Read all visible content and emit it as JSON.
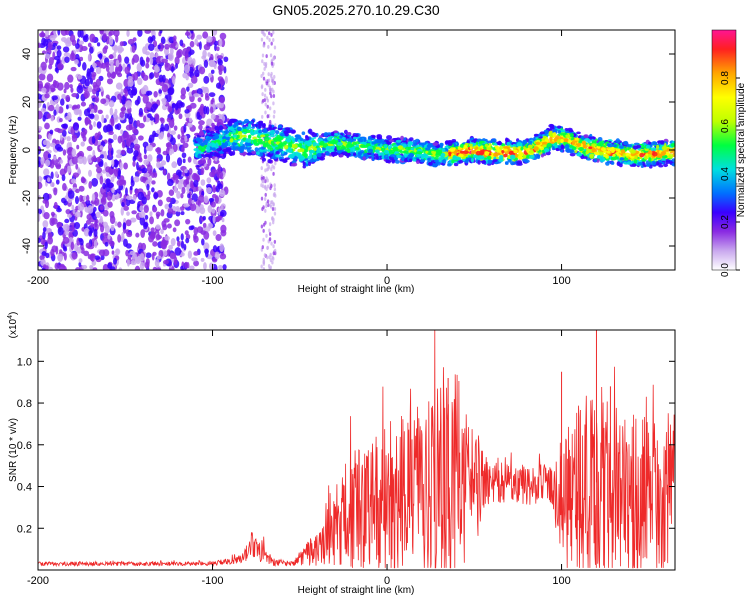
{
  "title": "GN05.2025.270.10.29.C30",
  "chart_data": [
    {
      "type": "heatmap",
      "title": "GN05.2025.270.10.29.C30",
      "xlabel": "Height of straight line (km)",
      "ylabel": "Frequency (Hz)",
      "xlim": [
        -200,
        165
      ],
      "ylim": [
        -50,
        50
      ],
      "xticks": [
        -200,
        -100,
        0,
        100
      ],
      "xtick_labels": [
        "-200",
        "-100",
        "0",
        "100"
      ],
      "yticks": [
        -40,
        -20,
        0,
        20,
        40
      ],
      "ytick_labels": [
        "-40",
        "-20",
        "0",
        "20",
        "40"
      ],
      "ridge": {
        "x": [
          -110,
          -95,
          -85,
          -75,
          -70,
          -60,
          -50,
          -40,
          -30,
          -20,
          -10,
          0,
          10,
          20,
          30,
          40,
          50,
          60,
          70,
          80,
          88,
          95,
          100,
          110,
          120,
          130,
          140,
          150,
          160,
          165
        ],
        "y": [
          0,
          4,
          6,
          5,
          3,
          3,
          0,
          1,
          3,
          2,
          1,
          0,
          0,
          -1,
          -2,
          -1,
          0,
          -1,
          -1,
          -1,
          2,
          5,
          5,
          2,
          0,
          -1,
          -2,
          -2,
          -1,
          -1
        ]
      },
      "colorbar": {
        "label": "Normalized spectral amplitude",
        "ticks": [
          0.0,
          0.2,
          0.4,
          0.6,
          0.8
        ],
        "tick_labels": [
          "0.0",
          "0.2",
          "0.4",
          "0.6",
          "0.8"
        ],
        "colors": [
          "#ffffff",
          "#c9a8ee",
          "#8a2be2",
          "#3a00ff",
          "#0070ff",
          "#00e0e0",
          "#00ff40",
          "#bfff00",
          "#ffff00",
          "#ffa500",
          "#ff2020",
          "#ff1493"
        ]
      }
    },
    {
      "type": "line",
      "xlabel": "Height of straight line (km)",
      "ylabel": "SNR (10 * v/v)",
      "scale_label": "(x10^4)",
      "xlim": [
        -200,
        165
      ],
      "ylim": [
        0,
        1.15
      ],
      "xticks": [
        -200,
        -100,
        0,
        100
      ],
      "xtick_labels": [
        "-200",
        "-100",
        "0",
        "100"
      ],
      "yticks": [
        0.2,
        0.4,
        0.6,
        0.8,
        1.0
      ],
      "ytick_labels": [
        "0.2",
        "0.4",
        "0.6",
        "0.8",
        "1.0"
      ],
      "color": "#ee2a2a",
      "envelope": {
        "x": [
          -200,
          -100,
          -85,
          -78,
          -70,
          -65,
          -55,
          -37,
          -30,
          -20,
          -10,
          0,
          10,
          20,
          30,
          40,
          50,
          55,
          60,
          70,
          80,
          90,
          95,
          100,
          110,
          120,
          130,
          140,
          150,
          165
        ],
        "mean": [
          0.03,
          0.03,
          0.05,
          0.12,
          0.08,
          0.04,
          0.03,
          0.12,
          0.2,
          0.28,
          0.3,
          0.32,
          0.35,
          0.38,
          0.42,
          0.45,
          0.4,
          0.42,
          0.42,
          0.42,
          0.4,
          0.42,
          0.4,
          0.3,
          0.38,
          0.42,
          0.4,
          0.35,
          0.35,
          0.38
        ],
        "amp": [
          0.01,
          0.01,
          0.02,
          0.07,
          0.05,
          0.02,
          0.01,
          0.1,
          0.2,
          0.3,
          0.3,
          0.4,
          0.4,
          0.45,
          0.5,
          0.5,
          0.35,
          0.15,
          0.1,
          0.1,
          0.1,
          0.1,
          0.1,
          0.3,
          0.45,
          0.5,
          0.4,
          0.4,
          0.4,
          0.4
        ]
      },
      "peaks": [
        {
          "x": 120,
          "y": 1.18
        },
        {
          "x": 35,
          "y": 0.92
        },
        {
          "x": 100,
          "y": 0.95
        },
        {
          "x": 128,
          "y": 0.88
        }
      ]
    }
  ]
}
